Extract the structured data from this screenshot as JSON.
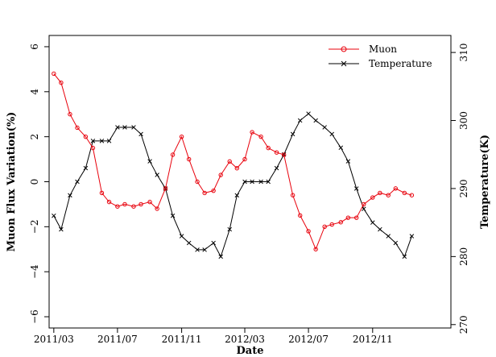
{
  "chart_data": {
    "type": "scatter",
    "xlabel": "Date",
    "ylabel": "Muon Flux Variation(%)",
    "y2label": "Temperature(K)",
    "xlim": [
      "2011-02-20",
      "2013-03-31"
    ],
    "ylim": [
      -6.5,
      6.5
    ],
    "y2lim": [
      269.5,
      312.5
    ],
    "x_ticks": [
      "2011/03",
      "2011/07",
      "2011/11",
      "2012/03",
      "2012/07",
      "2012/11"
    ],
    "x_tick_dates": [
      "2011-03-01",
      "2011-07-01",
      "2011-11-01",
      "2012-03-01",
      "2012-07-01",
      "2012-11-01"
    ],
    "y_ticks": [
      -6,
      -4,
      -2,
      0,
      2,
      4,
      6
    ],
    "y2_ticks": [
      270,
      280,
      290,
      300,
      310
    ],
    "legend": {
      "position": "top-right",
      "entries": [
        "Muon",
        "Temperature"
      ]
    },
    "grid": false,
    "series": [
      {
        "name": "Muon",
        "axis": "left",
        "color": "#e8000b",
        "marker": "circle",
        "x": [
          "2011-03-01",
          "2011-03-15",
          "2011-04-01",
          "2011-04-15",
          "2011-05-01",
          "2011-05-15",
          "2011-06-01",
          "2011-06-15",
          "2011-07-01",
          "2011-07-15",
          "2011-08-01",
          "2011-08-15",
          "2011-09-01",
          "2011-09-15",
          "2011-10-01",
          "2011-10-15",
          "2011-11-01",
          "2011-11-15",
          "2011-12-01",
          "2011-12-15",
          "2012-01-01",
          "2012-01-15",
          "2012-02-01",
          "2012-02-15",
          "2012-03-01",
          "2012-03-15",
          "2012-04-01",
          "2012-04-15",
          "2012-05-01",
          "2012-05-15",
          "2012-06-01",
          "2012-06-15",
          "2012-07-01",
          "2012-07-15",
          "2012-08-01",
          "2012-08-15",
          "2012-09-01",
          "2012-09-15",
          "2012-10-01",
          "2012-10-15",
          "2012-11-01",
          "2012-11-15",
          "2012-12-01",
          "2012-12-15",
          "2013-01-01",
          "2013-01-15"
        ],
        "values": [
          4.8,
          4.4,
          3.0,
          2.4,
          2.0,
          1.5,
          -0.5,
          -0.9,
          -1.1,
          -1.0,
          -1.1,
          -1.0,
          -0.9,
          -1.2,
          -0.3,
          1.2,
          2.0,
          1.0,
          0.0,
          -0.5,
          -0.4,
          0.3,
          0.9,
          0.6,
          1.0,
          2.2,
          2.0,
          1.5,
          1.3,
          1.2,
          -0.6,
          -1.5,
          -2.2,
          -3.0,
          -2.0,
          -1.9,
          -1.8,
          -1.6,
          -1.6,
          -1.0,
          -0.7,
          -0.5,
          -0.6,
          -0.3,
          -0.5,
          -0.6
        ]
      },
      {
        "name": "Temperature",
        "axis": "right",
        "color": "#000000",
        "marker": "x",
        "x": [
          "2011-03-01",
          "2011-03-15",
          "2011-04-01",
          "2011-04-15",
          "2011-05-01",
          "2011-05-15",
          "2011-06-01",
          "2011-06-15",
          "2011-07-01",
          "2011-07-15",
          "2011-08-01",
          "2011-08-15",
          "2011-09-01",
          "2011-09-15",
          "2011-10-01",
          "2011-10-15",
          "2011-11-01",
          "2011-11-15",
          "2011-12-01",
          "2011-12-15",
          "2012-01-01",
          "2012-01-15",
          "2012-02-01",
          "2012-02-15",
          "2012-03-01",
          "2012-03-15",
          "2012-04-01",
          "2012-04-15",
          "2012-05-01",
          "2012-05-15",
          "2012-06-01",
          "2012-06-15",
          "2012-07-01",
          "2012-07-15",
          "2012-08-01",
          "2012-08-15",
          "2012-09-01",
          "2012-09-15",
          "2012-10-01",
          "2012-10-15",
          "2012-11-01",
          "2012-11-15",
          "2012-12-01",
          "2012-12-15",
          "2013-01-01",
          "2013-01-15"
        ],
        "values": [
          286,
          284,
          289,
          291,
          293,
          297,
          297,
          297,
          299,
          299,
          299,
          298,
          294,
          292,
          290,
          286,
          283,
          282,
          281,
          281,
          282,
          280,
          284,
          289,
          291,
          291,
          291,
          291,
          293,
          295,
          298,
          300,
          301,
          300,
          299,
          298,
          296,
          294,
          290,
          287,
          285,
          284,
          283,
          282,
          280,
          283
        ]
      }
    ]
  }
}
